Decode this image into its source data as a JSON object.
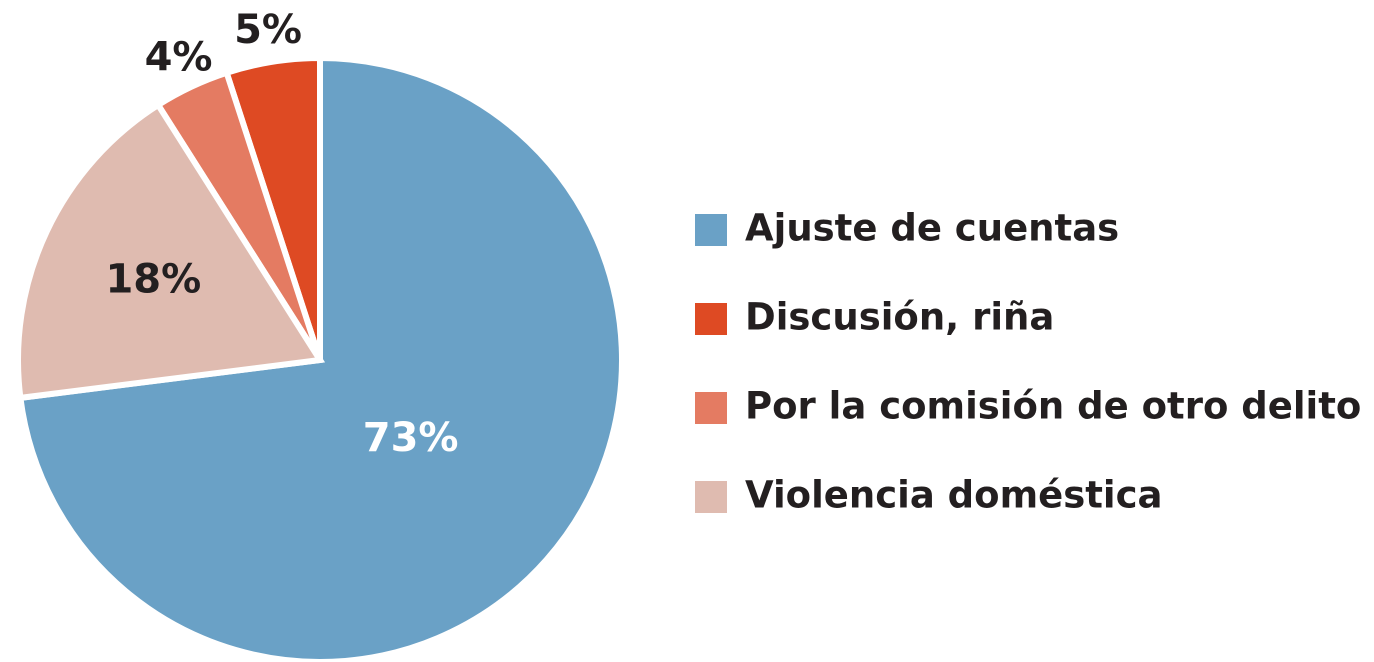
{
  "chart_data": {
    "type": "pie",
    "categories": [
      "Ajuste de cuentas",
      "Discusión, riña",
      "Por la comisión de otro delito",
      "Violencia doméstica"
    ],
    "values": [
      73,
      5,
      4,
      18
    ],
    "value_labels": [
      "73%",
      "5%",
      "4%",
      "18%"
    ],
    "colors": [
      "#6aa1c6",
      "#de4a23",
      "#e47b62",
      "#dfbbb0"
    ],
    "legend": "right"
  }
}
